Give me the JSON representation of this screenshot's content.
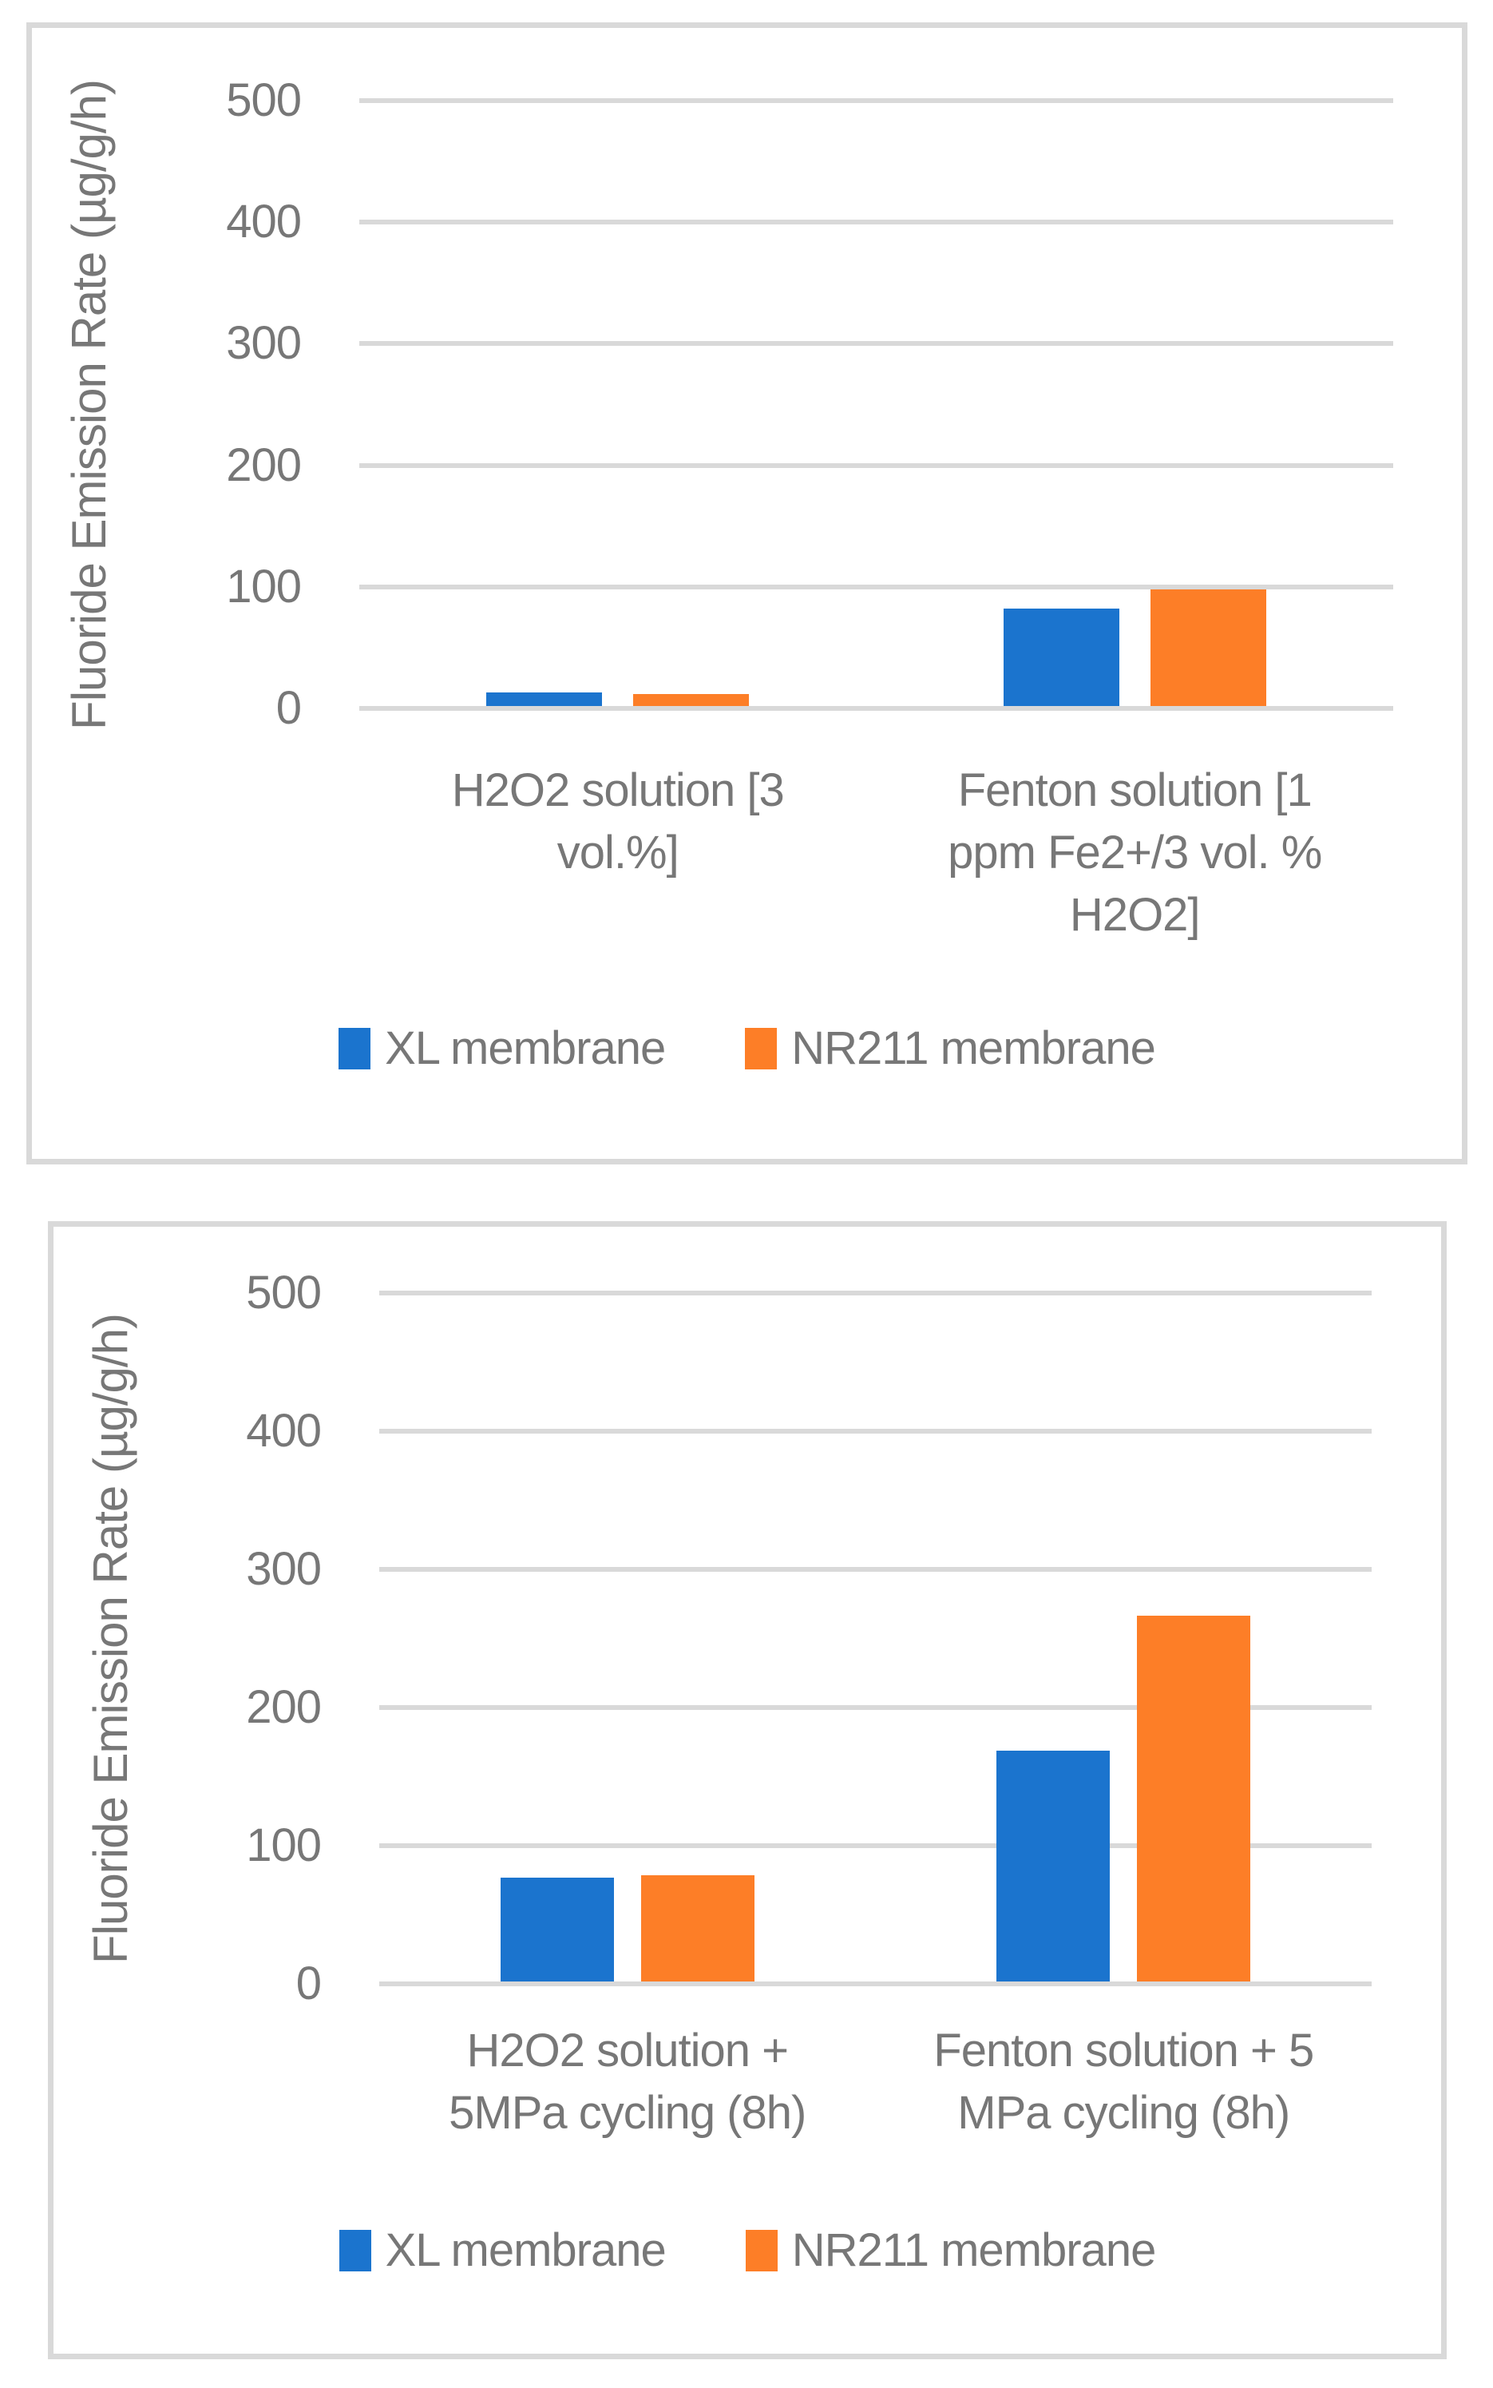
{
  "colors": {
    "series_blue": "#1b74ce",
    "series_orange": "#fd7e27",
    "gridline": "#d9d9d9",
    "panel_border": "#d9d9d9",
    "text_gray": "#777777"
  },
  "chart_data": [
    {
      "type": "bar",
      "title": "",
      "ylabel": "Fluoride Emission Rate (µg/g/h)",
      "xlabel": "",
      "ylim": [
        0,
        500
      ],
      "yticks": [
        0,
        100,
        200,
        300,
        400,
        500
      ],
      "grid": true,
      "legend_position": "bottom",
      "categories": [
        {
          "label": "H2O2  solution [3 vol.%]",
          "lines": [
            "H2O2  solution [3",
            "vol.%]"
          ]
        },
        {
          "label": "Fenton solution [1 ppm Fe2+/3 vol. % H2O2]",
          "lines": [
            "Fenton solution [1",
            "ppm Fe2+/3 vol. %",
            "H2O2]"
          ]
        }
      ],
      "series": [
        {
          "name": "XL membrane",
          "color": "#1b74ce",
          "values": [
            11,
            80
          ]
        },
        {
          "name": "NR211 membrane",
          "color": "#fd7e27",
          "values": [
            10,
            96
          ]
        }
      ]
    },
    {
      "type": "bar",
      "title": "",
      "ylabel": "Fluoride Emission Rate (µg/g/h)",
      "xlabel": "",
      "ylim": [
        0,
        500
      ],
      "yticks": [
        0,
        100,
        200,
        300,
        400,
        500
      ],
      "grid": true,
      "legend_position": "bottom",
      "categories": [
        {
          "label": "H2O2  solution + 5MPa cycling (8h)",
          "lines": [
            "H2O2  solution +",
            "5MPa cycling (8h)"
          ]
        },
        {
          "label": "Fenton solution + 5 MPa cycling (8h)",
          "lines": [
            "Fenton solution + 5",
            "MPa cycling (8h)"
          ]
        }
      ],
      "series": [
        {
          "name": "XL membrane",
          "color": "#1b74ce",
          "values": [
            75,
            167
          ]
        },
        {
          "name": "NR211 membrane",
          "color": "#fd7e27",
          "values": [
            77,
            265
          ]
        }
      ]
    }
  ]
}
